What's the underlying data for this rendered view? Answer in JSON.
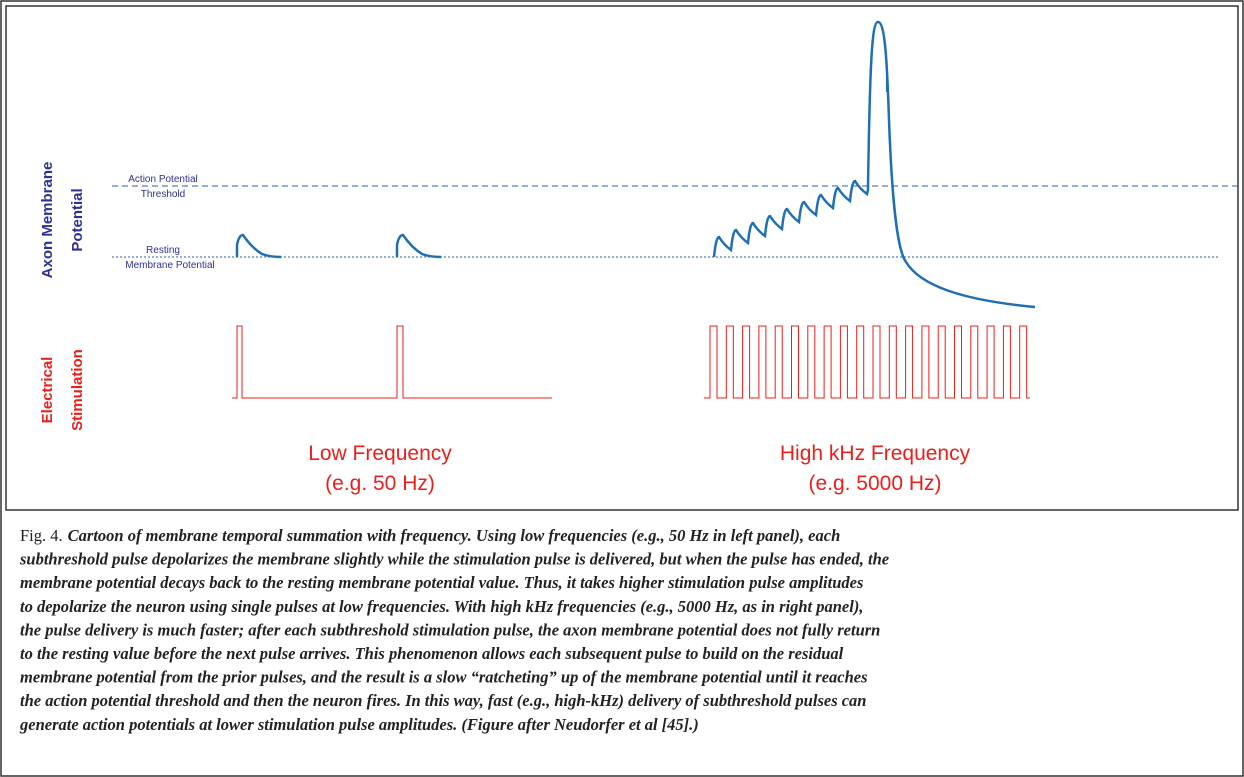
{
  "figure": {
    "axis_labels": {
      "membrane": [
        "Axon Membrane",
        "Potential"
      ],
      "stimulation": [
        "Electrical",
        "Stimulation"
      ]
    },
    "threshold_label": [
      "Action Potential",
      "Threshold"
    ],
    "resting_label": [
      "Resting",
      "Membrane Potential"
    ],
    "low_label": [
      "Low Frequency",
      "(e.g. 50 Hz)"
    ],
    "high_label": [
      "High kHz Frequency",
      "(e.g. 5000 Hz)"
    ]
  },
  "caption": {
    "number": "Fig. 4.",
    "lines": [
      "Cartoon of membrane temporal summation with frequency. Using low frequencies (e.g., 50 Hz in left panel), each",
      "subthreshold pulse depolarizes the membrane slightly while the stimulation pulse is delivered, but when the pulse has ended, the",
      "membrane potential decays back to the resting membrane potential value. Thus, it takes higher stimulation pulse amplitudes",
      "to depolarize the neuron using single pulses at low frequencies. With high kHz frequencies (e.g., 5000 Hz, as in right panel),",
      "the pulse delivery is much faster; after each subthreshold stimulation pulse, the axon membrane potential does not fully return",
      "to the resting value before the next pulse arrives. This phenomenon allows each subsequent pulse to build on the residual",
      "membrane potential from the prior pulses, and the result is a slow “ratcheting” up of the membrane potential until it reaches",
      "the action potential threshold and then the neuron fires.  In this way, fast (e.g., high-kHz) delivery of subthreshold pulses can",
      "generate action potentials at lower stimulation pulse amplitudes. (Figure after Neudorfer et al [45].)"
    ]
  }
}
